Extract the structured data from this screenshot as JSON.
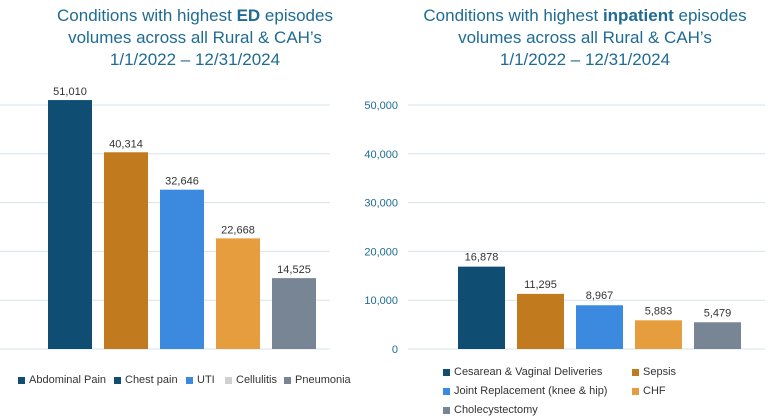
{
  "chart_data": [
    {
      "type": "bar",
      "title_parts": [
        "Conditions with highest ",
        "ED",
        " episodes",
        "volumes across all Rural & CAH’s",
        "1/1/2022 – 12/31/2024"
      ],
      "categories": [
        "Abdominal Pain",
        "Chest pain",
        "UTI",
        "Cellulitis",
        "Pneumonia"
      ],
      "values": [
        51010,
        40314,
        32646,
        22668,
        14525
      ],
      "value_labels": [
        "51,010",
        "40,314",
        "32,646",
        "22,668",
        "14,525"
      ],
      "colors": [
        "#0f4d73",
        "#c17a1d",
        "#3b8ae0",
        "#e69d3e",
        "#788594"
      ],
      "legend_colors": [
        "#0f4d73",
        "#0f4d73",
        "#3b8ae0",
        "#d0d0d0",
        "#788594"
      ],
      "ylim": [
        0,
        55000
      ],
      "gridlines": [
        0,
        10000,
        20000,
        30000,
        40000,
        50000
      ],
      "legend_position": "bottom"
    },
    {
      "type": "bar",
      "title_parts": [
        "Conditions with highest ",
        "inpatient",
        " episodes",
        "volumes across all Rural & CAH’s",
        "1/1/2022 – 12/31/2024"
      ],
      "categories": [
        "Cesarean & Vaginal Deliveries",
        "Sepsis",
        "Joint Replacement (knee & hip)",
        "CHF",
        "Cholecystectomy"
      ],
      "values": [
        16878,
        11295,
        8967,
        5883,
        5479
      ],
      "value_labels": [
        "16,878",
        "11,295",
        "8,967",
        "5,883",
        "5,479"
      ],
      "colors": [
        "#0f4d73",
        "#c17a1d",
        "#3b8ae0",
        "#e69d3e",
        "#788594"
      ],
      "legend_colors": [
        "#0f4d73",
        "#c17a1d",
        "#3b8ae0",
        "#e69d3e",
        "#788594"
      ],
      "ylim": [
        0,
        55000
      ],
      "yticks": [
        0,
        10000,
        20000,
        30000,
        40000,
        50000
      ],
      "ytick_labels": [
        "0",
        "10,000",
        "20,000",
        "30,000",
        "40,000",
        "50,000"
      ],
      "legend_position": "bottom"
    }
  ],
  "colors": {
    "title": "#1e6b93",
    "axis_text": "#1e6b93",
    "grid": "#d6e3ec"
  }
}
